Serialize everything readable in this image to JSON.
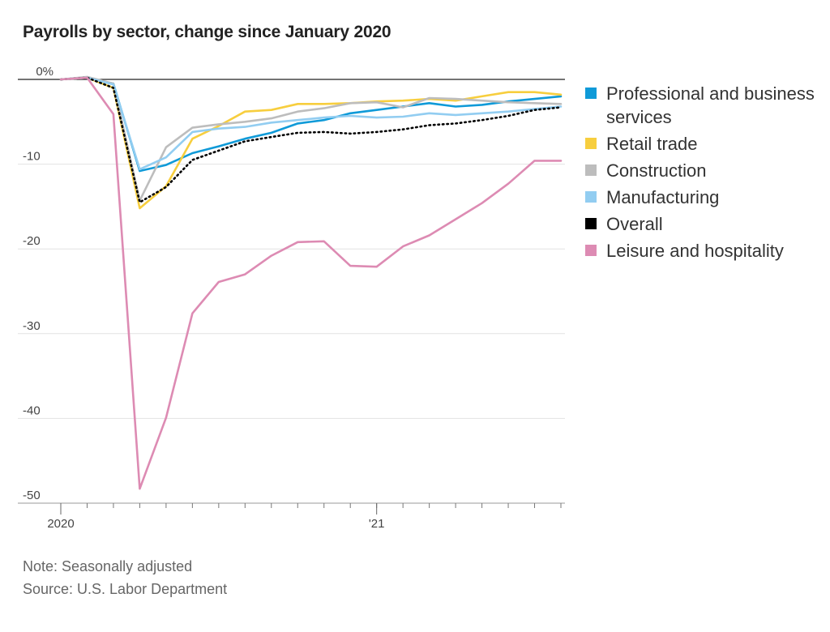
{
  "chart_data": {
    "type": "line",
    "title": "Payrolls by sector, change since January 2020",
    "xlabel": "",
    "ylabel": "",
    "x": [
      "2020-01",
      "2020-02",
      "2020-03",
      "2020-04",
      "2020-05",
      "2020-06",
      "2020-07",
      "2020-08",
      "2020-09",
      "2020-10",
      "2020-11",
      "2020-12",
      "2021-01",
      "2021-02",
      "2021-03",
      "2021-04",
      "2021-05",
      "2021-06",
      "2021-07",
      "2021-08"
    ],
    "x_ticks": [
      "2020-01",
      "2020-02",
      "2020-03",
      "2020-04",
      "2020-05",
      "2020-06",
      "2020-07",
      "2020-08",
      "2020-09",
      "2020-10",
      "2020-11",
      "2020-12",
      "2021-01",
      "2021-02",
      "2021-03",
      "2021-04",
      "2021-05",
      "2021-06",
      "2021-07",
      "2021-08"
    ],
    "x_tick_labels": [
      {
        "x": "2020-01",
        "label": "2020"
      },
      {
        "x": "2021-01",
        "label": "'21"
      }
    ],
    "ylim": [
      -50,
      0
    ],
    "y_ticks": [
      0,
      -10,
      -20,
      -30,
      -40,
      -50
    ],
    "y_tick_labels": [
      "0%",
      "-10",
      "-20",
      "-30",
      "-40",
      "-50"
    ],
    "grid": true,
    "legend_position": "right",
    "series": [
      {
        "name": "Professional and business services",
        "color": "#0f9ad8",
        "dash": false,
        "values": [
          0,
          0.2,
          -0.5,
          -10.8,
          -10.1,
          -8.7,
          -7.9,
          -7.0,
          -6.3,
          -5.2,
          -4.8,
          -4.0,
          -3.6,
          -3.2,
          -2.8,
          -3.2,
          -3.0,
          -2.6,
          -2.3,
          -2.0
        ]
      },
      {
        "name": "Retail trade",
        "color": "#f7ce3e",
        "dash": false,
        "values": [
          0,
          0.2,
          -1.0,
          -15.2,
          -12.6,
          -7.0,
          -5.5,
          -3.8,
          -3.6,
          -2.9,
          -2.9,
          -2.8,
          -2.6,
          -2.5,
          -2.3,
          -2.5,
          -2.0,
          -1.5,
          -1.5,
          -1.8
        ]
      },
      {
        "name": "Construction",
        "color": "#bdbdbd",
        "dash": false,
        "values": [
          0,
          0.3,
          -0.5,
          -14.3,
          -8.0,
          -5.7,
          -5.3,
          -5.0,
          -4.6,
          -3.8,
          -3.4,
          -2.8,
          -2.7,
          -3.3,
          -2.2,
          -2.3,
          -2.5,
          -2.7,
          -2.8,
          -2.9
        ]
      },
      {
        "name": "Manufacturing",
        "color": "#92cdf1",
        "dash": false,
        "values": [
          0,
          0.2,
          -0.6,
          -10.6,
          -9.2,
          -6.2,
          -5.8,
          -5.6,
          -5.1,
          -4.8,
          -4.5,
          -4.3,
          -4.5,
          -4.4,
          -4.0,
          -4.2,
          -4.0,
          -3.8,
          -3.5,
          -3.2
        ]
      },
      {
        "name": "Overall",
        "color": "#000000",
        "dash": true,
        "values": [
          0,
          0.2,
          -1.0,
          -14.5,
          -12.7,
          -9.5,
          -8.4,
          -7.3,
          -6.8,
          -6.3,
          -6.2,
          -6.4,
          -6.2,
          -5.9,
          -5.4,
          -5.2,
          -4.8,
          -4.3,
          -3.6,
          -3.3
        ]
      },
      {
        "name": "Leisure and hospitality",
        "color": "#dd8bb3",
        "dash": false,
        "values": [
          0,
          0.2,
          -4.1,
          -48.3,
          -39.9,
          -27.6,
          -23.9,
          -23.0,
          -20.8,
          -19.2,
          -19.1,
          -22.0,
          -22.1,
          -19.7,
          -18.4,
          -16.5,
          -14.6,
          -12.3,
          -9.6,
          -9.6
        ]
      }
    ]
  },
  "notes": {
    "note": "Note: Seasonally adjusted",
    "source": "Source: U.S. Labor Department"
  }
}
